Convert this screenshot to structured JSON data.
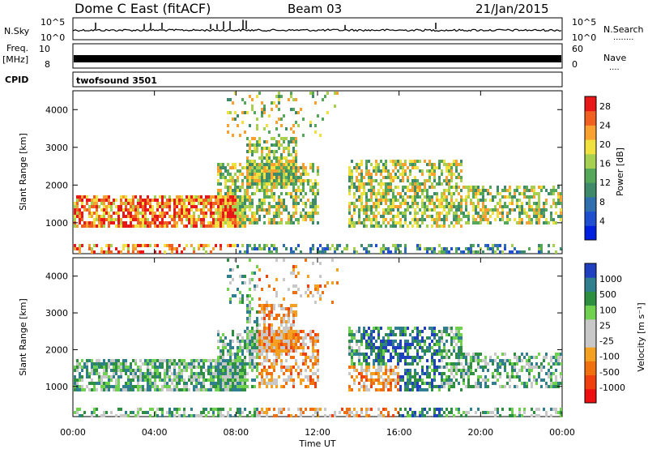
{
  "header": {
    "station": "Dome C East (fitACF)",
    "beam": "Beam 03",
    "date": "21/Jan/2015"
  },
  "strip_panels": {
    "nsky": {
      "label": "N.Sky",
      "ticks": [
        "10^5",
        "10^0"
      ],
      "right_label": "N.Search",
      "right_ticks": [
        "10^5",
        "10^0"
      ],
      "dots": "........"
    },
    "freq": {
      "label_top": "Freq.",
      "label_bottom": "[MHz]",
      "ticks": [
        "10",
        "8"
      ],
      "right_label": "Nave",
      "right_ticks": [
        "60",
        "0"
      ],
      "dots": "...."
    },
    "cpid": {
      "label": "CPID",
      "value": "twofsound 3501"
    }
  },
  "colors": {
    "power_scale": [
      "#0020e0",
      "#2050d0",
      "#2f6fae",
      "#3e8a6a",
      "#55a85a",
      "#a8d050",
      "#f0e040",
      "#f8a030",
      "#f06020",
      "#e81818"
    ],
    "velocity_scale": [
      "#ee1010",
      "#f04010",
      "#f07010",
      "#f4a020",
      "#c8c8c8",
      "#c8c8c8",
      "#70d050",
      "#2f8f40",
      "#2f7f8f",
      "#2040c0"
    ]
  },
  "chart_data": [
    {
      "type": "heatmap",
      "name": "power",
      "ylabel": "Slant Range [km]",
      "ylim": [
        180,
        4500
      ],
      "y_ticks": [
        "1000",
        "2000",
        "3000",
        "4000"
      ],
      "x_ticks": [
        "00:00",
        "04:00",
        "08:00",
        "12:00",
        "16:00",
        "20:00",
        "00:00"
      ],
      "xlim_hours": [
        0,
        24
      ],
      "colorbar": {
        "label": "Power [dB]",
        "ticks": [
          "4",
          "8",
          "12",
          "16",
          "20",
          "24",
          "28"
        ],
        "range": [
          0,
          30
        ]
      }
    },
    {
      "type": "heatmap",
      "name": "velocity",
      "ylabel": "Slant Range [km]",
      "ylim": [
        180,
        4500
      ],
      "y_ticks": [
        "1000",
        "2000",
        "3000",
        "4000"
      ],
      "x_ticks": [
        "00:00",
        "04:00",
        "08:00",
        "12:00",
        "16:00",
        "20:00",
        "00:00"
      ],
      "xlabel": "Time UT",
      "xlim_hours": [
        0,
        24
      ],
      "colorbar": {
        "label": "Velocity [m s⁻¹]",
        "ticks": [
          "1000",
          "500",
          "100",
          "25",
          "-25",
          "-100",
          "-500",
          "-1000"
        ]
      }
    }
  ]
}
